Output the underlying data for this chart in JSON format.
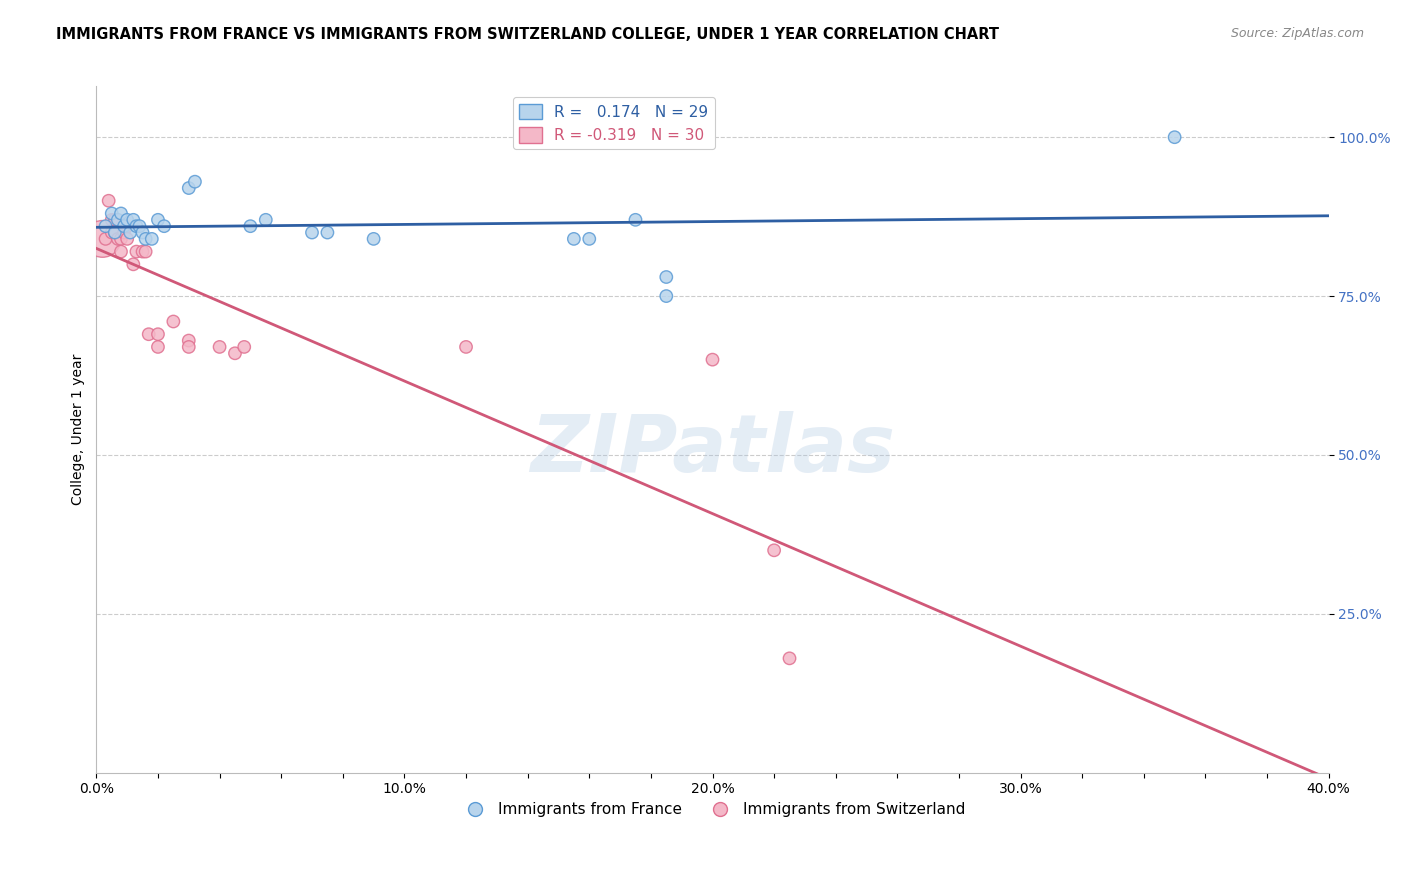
{
  "title": "IMMIGRANTS FROM FRANCE VS IMMIGRANTS FROM SWITZERLAND COLLEGE, UNDER 1 YEAR CORRELATION CHART",
  "source": "Source: ZipAtlas.com",
  "ylabel": "College, Under 1 year",
  "xlim": [
    0.0,
    0.4
  ],
  "ylim": [
    0.0,
    1.08
  ],
  "xtick_labels": [
    "0.0%",
    "",
    "",
    "",
    "",
    "10.0%",
    "",
    "",
    "",
    "",
    "20.0%",
    "",
    "",
    "",
    "",
    "30.0%",
    "",
    "",
    "",
    "",
    "40.0%"
  ],
  "xtick_values": [
    0.0,
    0.02,
    0.04,
    0.06,
    0.08,
    0.1,
    0.12,
    0.14,
    0.16,
    0.18,
    0.2,
    0.22,
    0.24,
    0.26,
    0.28,
    0.3,
    0.32,
    0.34,
    0.36,
    0.38,
    0.4
  ],
  "ytick_labels": [
    "25.0%",
    "50.0%",
    "75.0%",
    "100.0%"
  ],
  "ytick_values": [
    0.25,
    0.5,
    0.75,
    1.0
  ],
  "ytick_color": "#4472c4",
  "france_color": "#b8d4ec",
  "france_edge": "#5b9bd5",
  "swiss_color": "#f4b8c8",
  "swiss_edge": "#e07090",
  "trendline_france_color": "#2e5fa3",
  "trendline_swiss_color": "#d05878",
  "watermark": "ZIPatlas",
  "france_R": 0.174,
  "france_N": 29,
  "swiss_R": -0.319,
  "swiss_N": 30,
  "france_points": [
    [
      0.003,
      0.86
    ],
    [
      0.005,
      0.88
    ],
    [
      0.006,
      0.85
    ],
    [
      0.007,
      0.87
    ],
    [
      0.008,
      0.88
    ],
    [
      0.009,
      0.86
    ],
    [
      0.01,
      0.87
    ],
    [
      0.011,
      0.85
    ],
    [
      0.012,
      0.87
    ],
    [
      0.013,
      0.86
    ],
    [
      0.014,
      0.86
    ],
    [
      0.015,
      0.85
    ],
    [
      0.016,
      0.84
    ],
    [
      0.018,
      0.84
    ],
    [
      0.02,
      0.87
    ],
    [
      0.022,
      0.86
    ],
    [
      0.03,
      0.92
    ],
    [
      0.032,
      0.93
    ],
    [
      0.05,
      0.86
    ],
    [
      0.055,
      0.87
    ],
    [
      0.07,
      0.85
    ],
    [
      0.075,
      0.85
    ],
    [
      0.09,
      0.84
    ],
    [
      0.155,
      0.84
    ],
    [
      0.16,
      0.84
    ],
    [
      0.175,
      0.87
    ],
    [
      0.185,
      0.78
    ],
    [
      0.185,
      0.75
    ],
    [
      0.35,
      1.0
    ]
  ],
  "france_sizes": [
    80,
    80,
    80,
    80,
    80,
    80,
    80,
    80,
    80,
    80,
    80,
    80,
    80,
    80,
    80,
    80,
    80,
    80,
    80,
    80,
    80,
    80,
    80,
    80,
    80,
    80,
    80,
    80,
    80
  ],
  "swiss_points": [
    [
      0.002,
      0.84
    ],
    [
      0.003,
      0.84
    ],
    [
      0.004,
      0.9
    ],
    [
      0.005,
      0.87
    ],
    [
      0.005,
      0.85
    ],
    [
      0.006,
      0.87
    ],
    [
      0.006,
      0.85
    ],
    [
      0.007,
      0.84
    ],
    [
      0.008,
      0.84
    ],
    [
      0.008,
      0.82
    ],
    [
      0.009,
      0.85
    ],
    [
      0.01,
      0.84
    ],
    [
      0.01,
      0.86
    ],
    [
      0.012,
      0.8
    ],
    [
      0.013,
      0.82
    ],
    [
      0.015,
      0.82
    ],
    [
      0.016,
      0.82
    ],
    [
      0.017,
      0.69
    ],
    [
      0.02,
      0.69
    ],
    [
      0.02,
      0.67
    ],
    [
      0.025,
      0.71
    ],
    [
      0.03,
      0.68
    ],
    [
      0.03,
      0.67
    ],
    [
      0.04,
      0.67
    ],
    [
      0.045,
      0.66
    ],
    [
      0.048,
      0.67
    ],
    [
      0.12,
      0.67
    ],
    [
      0.2,
      0.65
    ],
    [
      0.22,
      0.35
    ],
    [
      0.225,
      0.18
    ]
  ],
  "swiss_sizes": [
    700,
    80,
    80,
    80,
    80,
    80,
    80,
    80,
    80,
    80,
    80,
    80,
    80,
    80,
    80,
    80,
    80,
    80,
    80,
    80,
    80,
    80,
    80,
    80,
    80,
    80,
    80,
    80,
    80,
    80
  ]
}
